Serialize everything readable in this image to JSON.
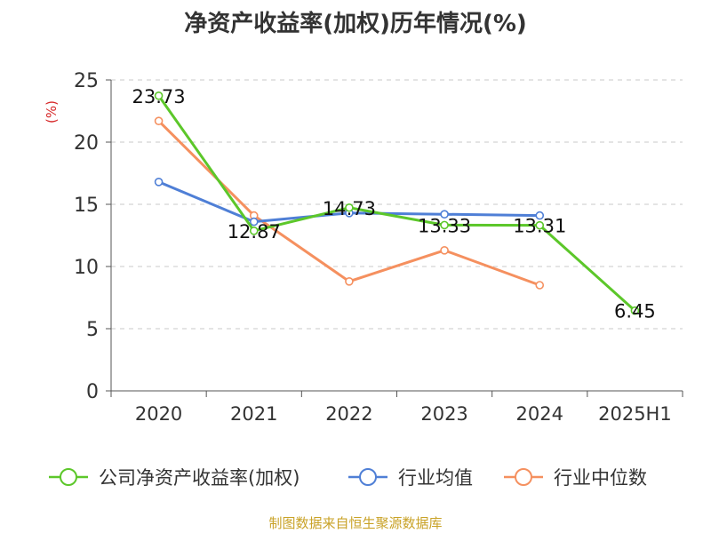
{
  "chart_data": {
    "type": "line",
    "title": "净资产收益率(加权)历年情况(%)",
    "ylabel": "(%)",
    "categories": [
      "2020",
      "2021",
      "2022",
      "2023",
      "2024",
      "2025H1"
    ],
    "ylim": [
      0,
      25
    ],
    "yticks": [
      0,
      5,
      10,
      15,
      20,
      25
    ],
    "grid": true,
    "legend_position": "bottom",
    "series": [
      {
        "name": "公司净资产收益率(加权)",
        "values": [
          23.73,
          12.87,
          14.73,
          13.33,
          13.31,
          6.45
        ],
        "labels": [
          "23.73",
          "12.87",
          "14.73",
          "13.33",
          "13.31",
          "6.45"
        ],
        "color": "#5cc72a"
      },
      {
        "name": "行业均值",
        "values": [
          16.8,
          13.6,
          14.3,
          14.2,
          14.1,
          null
        ],
        "color": "#4f7fd6"
      },
      {
        "name": "行业中位数",
        "values": [
          21.7,
          14.1,
          8.8,
          11.3,
          8.5,
          null
        ],
        "color": "#f5905f"
      }
    ]
  },
  "footer": {
    "source": "制图数据来自恒生聚源数据库"
  }
}
